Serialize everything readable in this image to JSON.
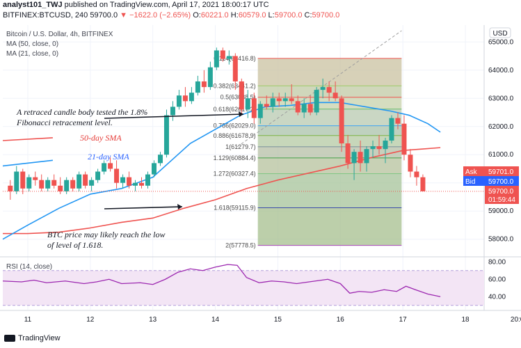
{
  "header": {
    "author": "analyst101_TWJ",
    "published": "published on TradingView.com, April 17, 2021 18:00:17 UTC",
    "symbol": "BITFINEX:BTCUSD, 240",
    "last": "59700.0",
    "change": "▼ −1622.0 (−2.65%)",
    "o_label": "O:",
    "o": "60221.0",
    "h_label": "H:",
    "h": "60579.0",
    "l_label": "L:",
    "l": "59700.0",
    "c_label": "C:",
    "c": "59700.0"
  },
  "legend": {
    "title": "Bitcoin / U.S. Dollar, 4h, BITFINEX",
    "ma50": "MA (50, close, 0)",
    "ma21": "MA (21, close, 0)",
    "rsi": "RSI (14, close)"
  },
  "axis": {
    "currency": "USD"
  },
  "price_tags": {
    "ask_label": "Ask",
    "ask": "59701.0",
    "bid_label": "Bid",
    "bid": "59700.0",
    "last": "59700.0",
    "countdown": "01:59:44"
  },
  "annotations": {
    "fib_test": "A retraced candle body tested the 1.8% Fibonacci retracement level.",
    "sma50": "50-day SMA",
    "sma21": "21-day SMA",
    "btc_low": "BTC price may likely reach the low of level of 1.618."
  },
  "footer": {
    "brand": "TradingView"
  },
  "colors": {
    "up": "#26a69a",
    "down": "#ef5350",
    "ma21": "#2196f3",
    "ma50": "#ef5350",
    "rsi": "#9c27b0",
    "annotation": "#e53935",
    "annotation_blue": "#2962ff"
  },
  "chart_data": {
    "type": "candlestick",
    "x_ticks": [
      "11",
      "12",
      "13",
      "14",
      "15",
      "16",
      "17",
      "18",
      "20:0"
    ],
    "y_ticks": [
      "65000.0",
      "64000.0",
      "63000.0",
      "62000.0",
      "61000.0",
      "60000.0",
      "59000.0",
      "58000.0"
    ],
    "y_tick_values": [
      65000,
      64000,
      63000,
      62000,
      61000,
      60000,
      59000,
      58000
    ],
    "ylim": [
      57400,
      65600
    ],
    "xlim": [
      10.6,
      18.3
    ],
    "rsi_ticks": [
      "80.00",
      "60.00",
      "40.00"
    ],
    "rsi_tick_values": [
      80,
      60,
      40
    ],
    "rsi_ylim": [
      25,
      85
    ],
    "rsi_band": [
      30,
      70
    ],
    "candles": [
      {
        "x": 10.72,
        "o": 59900,
        "h": 60100,
        "l": 59400,
        "c": 59700
      },
      {
        "x": 10.82,
        "o": 59700,
        "h": 60600,
        "l": 59600,
        "c": 60400
      },
      {
        "x": 10.92,
        "o": 60400,
        "h": 60500,
        "l": 59600,
        "c": 59800
      },
      {
        "x": 11.02,
        "o": 59800,
        "h": 60300,
        "l": 59700,
        "c": 60200
      },
      {
        "x": 11.12,
        "o": 60200,
        "h": 60400,
        "l": 59900,
        "c": 60100
      },
      {
        "x": 11.22,
        "o": 60100,
        "h": 60300,
        "l": 59700,
        "c": 59800
      },
      {
        "x": 11.32,
        "o": 59800,
        "h": 60200,
        "l": 59700,
        "c": 60100
      },
      {
        "x": 11.42,
        "o": 60100,
        "h": 60300,
        "l": 59800,
        "c": 59900
      },
      {
        "x": 11.52,
        "o": 59900,
        "h": 60200,
        "l": 59600,
        "c": 59700
      },
      {
        "x": 11.62,
        "o": 59700,
        "h": 60200,
        "l": 59600,
        "c": 60100
      },
      {
        "x": 11.72,
        "o": 60100,
        "h": 60200,
        "l": 59700,
        "c": 59800
      },
      {
        "x": 11.82,
        "o": 59800,
        "h": 60400,
        "l": 59700,
        "c": 60300
      },
      {
        "x": 11.92,
        "o": 60300,
        "h": 60400,
        "l": 59800,
        "c": 59900
      },
      {
        "x": 12.02,
        "o": 59900,
        "h": 60200,
        "l": 59700,
        "c": 60100
      },
      {
        "x": 12.12,
        "o": 60100,
        "h": 60500,
        "l": 60000,
        "c": 60400
      },
      {
        "x": 12.22,
        "o": 60400,
        "h": 60800,
        "l": 60300,
        "c": 60700
      },
      {
        "x": 12.32,
        "o": 60700,
        "h": 60900,
        "l": 60400,
        "c": 60500
      },
      {
        "x": 12.42,
        "o": 60500,
        "h": 60800,
        "l": 59800,
        "c": 60000
      },
      {
        "x": 12.52,
        "o": 60000,
        "h": 60300,
        "l": 59800,
        "c": 60200
      },
      {
        "x": 12.62,
        "o": 60200,
        "h": 60400,
        "l": 59800,
        "c": 59900
      },
      {
        "x": 12.72,
        "o": 59900,
        "h": 60100,
        "l": 59700,
        "c": 60000
      },
      {
        "x": 12.82,
        "o": 60000,
        "h": 60200,
        "l": 59800,
        "c": 59900
      },
      {
        "x": 12.92,
        "o": 59900,
        "h": 60400,
        "l": 59800,
        "c": 60300
      },
      {
        "x": 13.02,
        "o": 60300,
        "h": 60800,
        "l": 60200,
        "c": 60700
      },
      {
        "x": 13.12,
        "o": 60700,
        "h": 61100,
        "l": 60600,
        "c": 61000
      },
      {
        "x": 13.22,
        "o": 61000,
        "h": 62600,
        "l": 60900,
        "c": 62400
      },
      {
        "x": 13.32,
        "o": 62400,
        "h": 62900,
        "l": 62200,
        "c": 62700
      },
      {
        "x": 13.42,
        "o": 62700,
        "h": 63300,
        "l": 62600,
        "c": 63100
      },
      {
        "x": 13.52,
        "o": 63100,
        "h": 63400,
        "l": 62700,
        "c": 62900
      },
      {
        "x": 13.62,
        "o": 62900,
        "h": 63400,
        "l": 62800,
        "c": 63200
      },
      {
        "x": 13.72,
        "o": 63200,
        "h": 63800,
        "l": 63100,
        "c": 63600
      },
      {
        "x": 13.82,
        "o": 63600,
        "h": 64000,
        "l": 63200,
        "c": 63400
      },
      {
        "x": 13.92,
        "o": 63400,
        "h": 64300,
        "l": 63300,
        "c": 64100
      },
      {
        "x": 14.02,
        "o": 64100,
        "h": 64800,
        "l": 64000,
        "c": 64700
      },
      {
        "x": 14.12,
        "o": 64700,
        "h": 64800,
        "l": 64300,
        "c": 64400
      },
      {
        "x": 14.22,
        "o": 64400,
        "h": 64700,
        "l": 64200,
        "c": 64500
      },
      {
        "x": 14.32,
        "o": 64500,
        "h": 64600,
        "l": 63300,
        "c": 63600
      },
      {
        "x": 14.42,
        "o": 63600,
        "h": 63700,
        "l": 62400,
        "c": 62600
      },
      {
        "x": 14.52,
        "o": 62600,
        "h": 63300,
        "l": 62300,
        "c": 63000
      },
      {
        "x": 14.62,
        "o": 63000,
        "h": 63200,
        "l": 62100,
        "c": 62300
      },
      {
        "x": 14.72,
        "o": 62300,
        "h": 62900,
        "l": 62100,
        "c": 62800
      },
      {
        "x": 14.82,
        "o": 62800,
        "h": 63100,
        "l": 62600,
        "c": 62700
      },
      {
        "x": 14.92,
        "o": 62700,
        "h": 63200,
        "l": 62500,
        "c": 63000
      },
      {
        "x": 15.02,
        "o": 63000,
        "h": 63200,
        "l": 62700,
        "c": 62900
      },
      {
        "x": 15.12,
        "o": 62900,
        "h": 63200,
        "l": 62700,
        "c": 63000
      },
      {
        "x": 15.22,
        "o": 63000,
        "h": 63500,
        "l": 62800,
        "c": 62900
      },
      {
        "x": 15.32,
        "o": 62900,
        "h": 63100,
        "l": 62400,
        "c": 62500
      },
      {
        "x": 15.42,
        "o": 62500,
        "h": 63000,
        "l": 62300,
        "c": 62800
      },
      {
        "x": 15.52,
        "o": 62800,
        "h": 63100,
        "l": 62400,
        "c": 62500
      },
      {
        "x": 15.62,
        "o": 62500,
        "h": 63400,
        "l": 62400,
        "c": 63300
      },
      {
        "x": 15.72,
        "o": 63300,
        "h": 63700,
        "l": 63000,
        "c": 63400
      },
      {
        "x": 15.82,
        "o": 63400,
        "h": 63600,
        "l": 62900,
        "c": 63200
      },
      {
        "x": 15.92,
        "o": 63200,
        "h": 63600,
        "l": 62900,
        "c": 63000
      },
      {
        "x": 16.02,
        "o": 63000,
        "h": 63100,
        "l": 61100,
        "c": 61400
      },
      {
        "x": 16.12,
        "o": 61400,
        "h": 61700,
        "l": 60500,
        "c": 60700
      },
      {
        "x": 16.22,
        "o": 60700,
        "h": 61200,
        "l": 60100,
        "c": 61100
      },
      {
        "x": 16.32,
        "o": 61100,
        "h": 61500,
        "l": 60400,
        "c": 60700
      },
      {
        "x": 16.42,
        "o": 60700,
        "h": 61300,
        "l": 60400,
        "c": 61200
      },
      {
        "x": 16.52,
        "o": 61200,
        "h": 61500,
        "l": 60900,
        "c": 61300
      },
      {
        "x": 16.62,
        "o": 61300,
        "h": 61700,
        "l": 61000,
        "c": 61200
      },
      {
        "x": 16.72,
        "o": 61200,
        "h": 61600,
        "l": 60700,
        "c": 61500
      },
      {
        "x": 16.82,
        "o": 61500,
        "h": 62400,
        "l": 61400,
        "c": 62300
      },
      {
        "x": 16.92,
        "o": 62300,
        "h": 62500,
        "l": 61900,
        "c": 62100
      },
      {
        "x": 17.02,
        "o": 62100,
        "h": 62400,
        "l": 60800,
        "c": 61000
      },
      {
        "x": 17.12,
        "o": 61000,
        "h": 61200,
        "l": 60200,
        "c": 60400
      },
      {
        "x": 17.22,
        "o": 60400,
        "h": 60600,
        "l": 59900,
        "c": 60200
      },
      {
        "x": 17.32,
        "o": 60200,
        "h": 60300,
        "l": 59700,
        "c": 59700
      }
    ],
    "ma21": [
      [
        10.6,
        58000
      ],
      [
        11.0,
        58500
      ],
      [
        11.5,
        59100
      ],
      [
        12.0,
        59600
      ],
      [
        12.5,
        59800
      ],
      [
        13.0,
        60200
      ],
      [
        13.3,
        60800
      ],
      [
        13.6,
        61400
      ],
      [
        14.0,
        61900
      ],
      [
        14.4,
        62400
      ],
      [
        14.8,
        62700
      ],
      [
        15.2,
        62750
      ],
      [
        15.6,
        62850
      ],
      [
        16.0,
        62850
      ],
      [
        16.4,
        62700
      ],
      [
        16.8,
        62550
      ],
      [
        17.1,
        62400
      ],
      [
        17.4,
        62100
      ],
      [
        17.6,
        61800
      ]
    ],
    "ma50": [
      [
        10.6,
        58200
      ],
      [
        11.0,
        58200
      ],
      [
        11.5,
        58250
      ],
      [
        12.0,
        58400
      ],
      [
        12.5,
        58600
      ],
      [
        13.0,
        58750
      ],
      [
        13.5,
        59100
      ],
      [
        14.0,
        59400
      ],
      [
        14.5,
        59800
      ],
      [
        15.0,
        60100
      ],
      [
        15.5,
        60350
      ],
      [
        16.0,
        60600
      ],
      [
        16.5,
        60900
      ],
      [
        17.0,
        61150
      ],
      [
        17.3,
        61200
      ],
      [
        17.6,
        61250
      ]
    ],
    "ma50_stub": [
      [
        10.6,
        61500
      ],
      [
        11.4,
        61600
      ]
    ],
    "ma21_stub": [
      [
        10.6,
        60600
      ],
      [
        11.4,
        60800
      ]
    ],
    "fib_box": {
      "x0": 14.68,
      "x1": 16.98
    },
    "fib_levels": [
      {
        "label": "0.114(64416.8)",
        "price": 64416.8
      },
      {
        "label": "0.382(63441.2)",
        "price": 63441.2
      },
      {
        "label": "0.5(63038.5)",
        "price": 63038.5
      },
      {
        "label": "0.618(62617.2)",
        "price": 62617.2
      },
      {
        "label": "0.786(62029.0)",
        "price": 62029.0
      },
      {
        "label": "0.886(61678.9)",
        "price": 61678.9
      },
      {
        "label": "1(61279.7)",
        "price": 61279.7
      },
      {
        "label": "1.129(60884.4)",
        "price": 60884.4
      },
      {
        "label": "1.272(60327.4)",
        "price": 60327.4
      },
      {
        "label": "1.618(59115.9)",
        "price": 59115.9
      },
      {
        "label": "2(57778.5)",
        "price": 57778.5
      }
    ],
    "rsi": [
      [
        10.6,
        58
      ],
      [
        10.9,
        57
      ],
      [
        11.1,
        59
      ],
      [
        11.3,
        56
      ],
      [
        11.6,
        58
      ],
      [
        11.9,
        55
      ],
      [
        12.1,
        57
      ],
      [
        12.3,
        60
      ],
      [
        12.5,
        55
      ],
      [
        12.8,
        56
      ],
      [
        13.0,
        54
      ],
      [
        13.2,
        60
      ],
      [
        13.4,
        68
      ],
      [
        13.6,
        72
      ],
      [
        13.8,
        70
      ],
      [
        14.0,
        74
      ],
      [
        14.2,
        77
      ],
      [
        14.35,
        76
      ],
      [
        14.5,
        62
      ],
      [
        14.7,
        56
      ],
      [
        14.9,
        58
      ],
      [
        15.1,
        57
      ],
      [
        15.3,
        55
      ],
      [
        15.5,
        57
      ],
      [
        15.8,
        60
      ],
      [
        16.0,
        55
      ],
      [
        16.15,
        44
      ],
      [
        16.3,
        46
      ],
      [
        16.5,
        45
      ],
      [
        16.7,
        48
      ],
      [
        16.9,
        46
      ],
      [
        17.05,
        52
      ],
      [
        17.2,
        48
      ],
      [
        17.4,
        43
      ],
      [
        17.6,
        40
      ]
    ]
  }
}
